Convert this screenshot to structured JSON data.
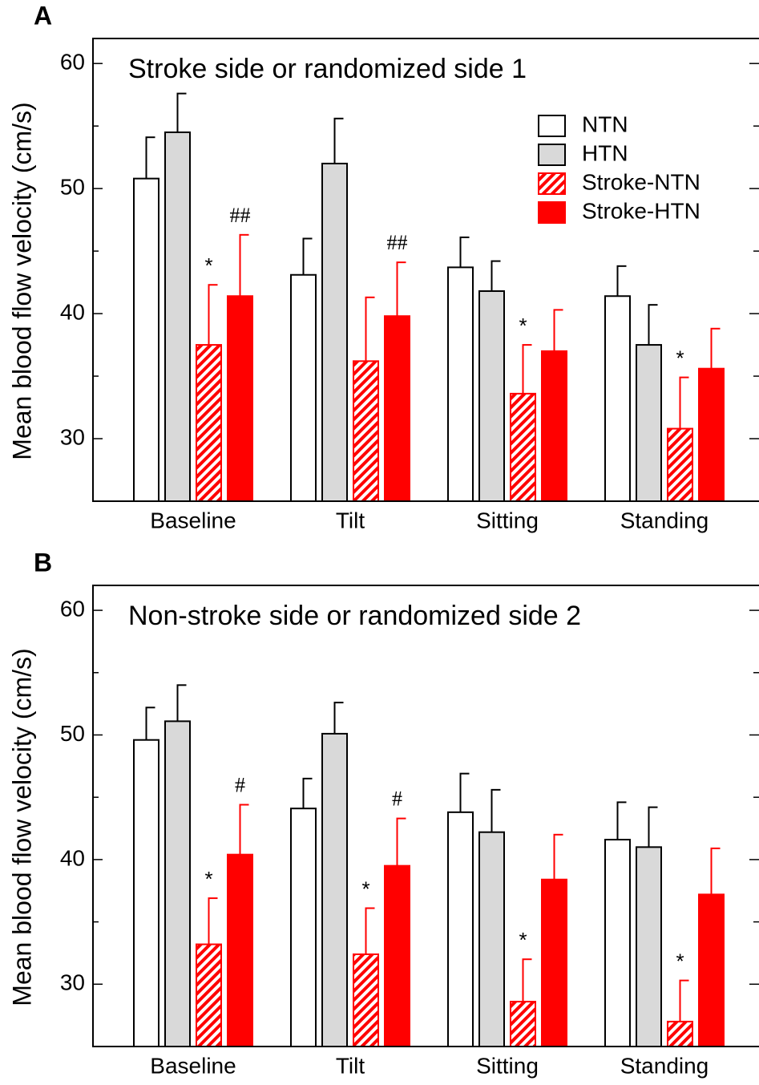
{
  "chart_data": [
    {
      "type": "bar",
      "panel_label": "A",
      "title": "Stroke side or randomized side 1",
      "y_label": "Mean blood flow velocity (cm/s)",
      "categories": [
        "Baseline",
        "Tilt",
        "Sitting",
        "Standing"
      ],
      "ylim": [
        25,
        62
      ],
      "yticks": [
        30,
        40,
        50,
        60
      ],
      "yminorticks": [
        35,
        45,
        55
      ],
      "legend": "upper right",
      "series": [
        {
          "name": "NTN",
          "color": "#ffffff",
          "edge": "#000000",
          "hatch": false,
          "values": [
            50.8,
            43.1,
            43.7,
            41.4
          ],
          "errors": [
            3.3,
            2.9,
            2.4,
            2.4
          ],
          "markers": [
            null,
            null,
            null,
            null
          ]
        },
        {
          "name": "HTN",
          "color": "#d9d9d9",
          "edge": "#000000",
          "hatch": false,
          "values": [
            54.5,
            52.0,
            41.8,
            37.5
          ],
          "errors": [
            3.1,
            3.6,
            2.4,
            3.2
          ],
          "markers": [
            null,
            null,
            null,
            null
          ]
        },
        {
          "name": "Stroke-NTN",
          "color": "#ff0000",
          "edge": "#ff0000",
          "hatch": true,
          "values": [
            37.5,
            36.2,
            33.6,
            30.8
          ],
          "errors": [
            4.8,
            5.1,
            3.9,
            4.1
          ],
          "markers": [
            "*",
            null,
            "*",
            "*"
          ]
        },
        {
          "name": "Stroke-HTN",
          "color": "#ff0000",
          "edge": "#ff0000",
          "hatch": false,
          "values": [
            41.4,
            39.8,
            37.0,
            35.6
          ],
          "errors": [
            4.9,
            4.3,
            3.3,
            3.2
          ],
          "markers": [
            "##",
            "##",
            null,
            null
          ]
        }
      ]
    },
    {
      "type": "bar",
      "panel_label": "B",
      "title": "Non-stroke side or randomized side 2",
      "y_label": "Mean blood flow velocity (cm/s)",
      "categories": [
        "Baseline",
        "Tilt",
        "Sitting",
        "Standing"
      ],
      "ylim": [
        25,
        62
      ],
      "yticks": [
        30,
        40,
        50,
        60
      ],
      "yminorticks": [
        35,
        45,
        55
      ],
      "series": [
        {
          "color": "#ffffff",
          "edge": "#000000",
          "hatch": false,
          "values": [
            49.6,
            44.1,
            43.8,
            41.6
          ],
          "errors": [
            2.6,
            2.4,
            3.1,
            3.0
          ],
          "markers": [
            null,
            null,
            null,
            null
          ]
        },
        {
          "color": "#d9d9d9",
          "edge": "#000000",
          "hatch": false,
          "values": [
            51.1,
            50.1,
            42.2,
            41.0
          ],
          "errors": [
            2.9,
            2.5,
            3.4,
            3.2
          ],
          "markers": [
            null,
            null,
            null,
            null
          ]
        },
        {
          "color": "#ff0000",
          "edge": "#ff0000",
          "hatch": true,
          "values": [
            33.2,
            32.4,
            28.6,
            27.0
          ],
          "errors": [
            3.7,
            3.7,
            3.4,
            3.3
          ],
          "markers": [
            "*",
            "*",
            "*",
            "*"
          ]
        },
        {
          "color": "#ff0000",
          "edge": "#ff0000",
          "hatch": false,
          "values": [
            40.4,
            39.5,
            38.4,
            37.2
          ],
          "errors": [
            4.0,
            3.8,
            3.6,
            3.7
          ],
          "markers": [
            "#",
            "#",
            null,
            null
          ]
        }
      ]
    }
  ]
}
